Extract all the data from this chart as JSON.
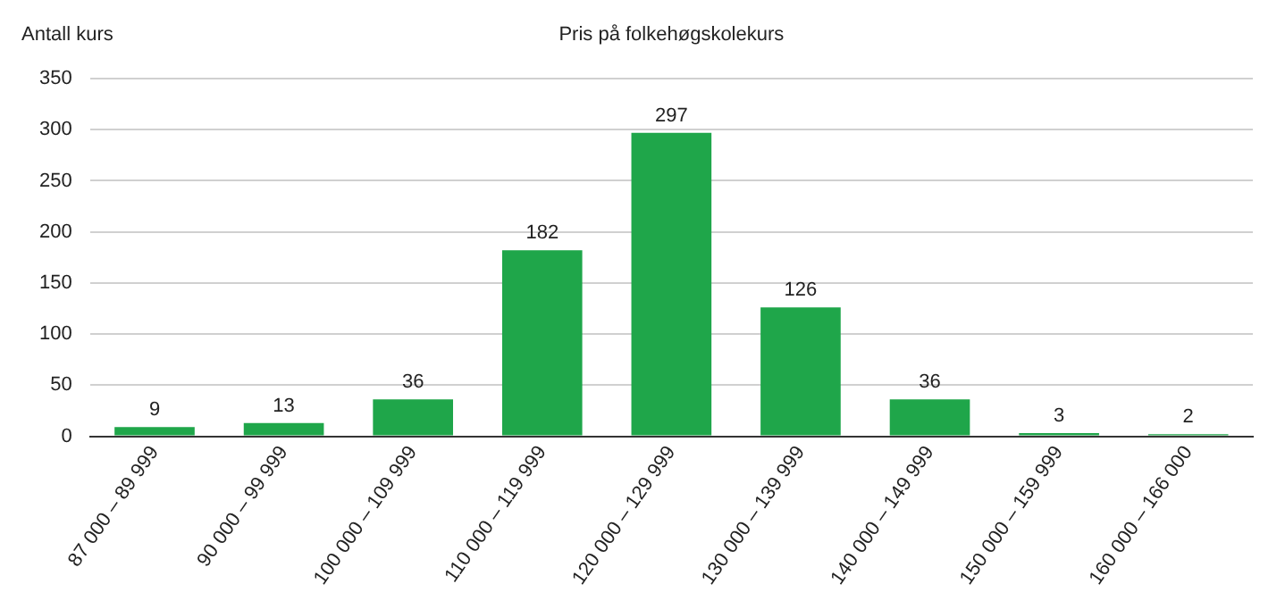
{
  "chart_data": {
    "type": "bar",
    "title": "Pris på folkehøgskolekurs",
    "ylabel": "Antall kurs",
    "categories": [
      "87 000 – 89 999",
      "90 000 – 99 999",
      "100 000 – 109 999",
      "110 000 – 119 999",
      "120 000 – 129 999",
      "130 000 – 139 999",
      "140 000 – 149 999",
      "150 000 – 159 999",
      "160 000 – 166 000"
    ],
    "values": [
      9,
      13,
      36,
      182,
      297,
      126,
      36,
      3,
      2
    ],
    "color": "#1fa64a",
    "ylim": [
      0,
      350
    ],
    "yticks": [
      0,
      50,
      100,
      150,
      200,
      250,
      300,
      350
    ],
    "grid": "y",
    "data_labels": true
  }
}
